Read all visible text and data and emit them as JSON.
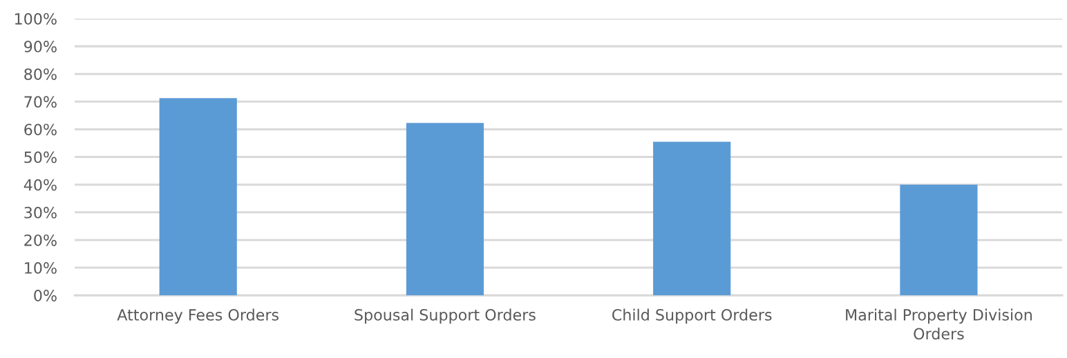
{
  "chart_data": {
    "type": "bar",
    "categories": [
      "Attorney Fees Orders",
      "Spousal Support Orders",
      "Child Support Orders",
      "Marital Property Division Orders"
    ],
    "values": [
      71.3,
      62.3,
      55.5,
      40
    ],
    "color": "#5b9bd5",
    "ylim": [
      0,
      100
    ],
    "yticks": [
      {
        "value": 0,
        "label": "0%"
      },
      {
        "value": 10,
        "label": "10%"
      },
      {
        "value": 20,
        "label": "20%"
      },
      {
        "value": 30,
        "label": "30%"
      },
      {
        "value": 40,
        "label": "40%"
      },
      {
        "value": 50,
        "label": "50%"
      },
      {
        "value": 60,
        "label": "60%"
      },
      {
        "value": 70,
        "label": "70%"
      },
      {
        "value": 80,
        "label": "80%"
      },
      {
        "value": 90,
        "label": "90%"
      },
      {
        "value": 100,
        "label": "100%"
      }
    ],
    "grid": "y",
    "legend": false
  }
}
